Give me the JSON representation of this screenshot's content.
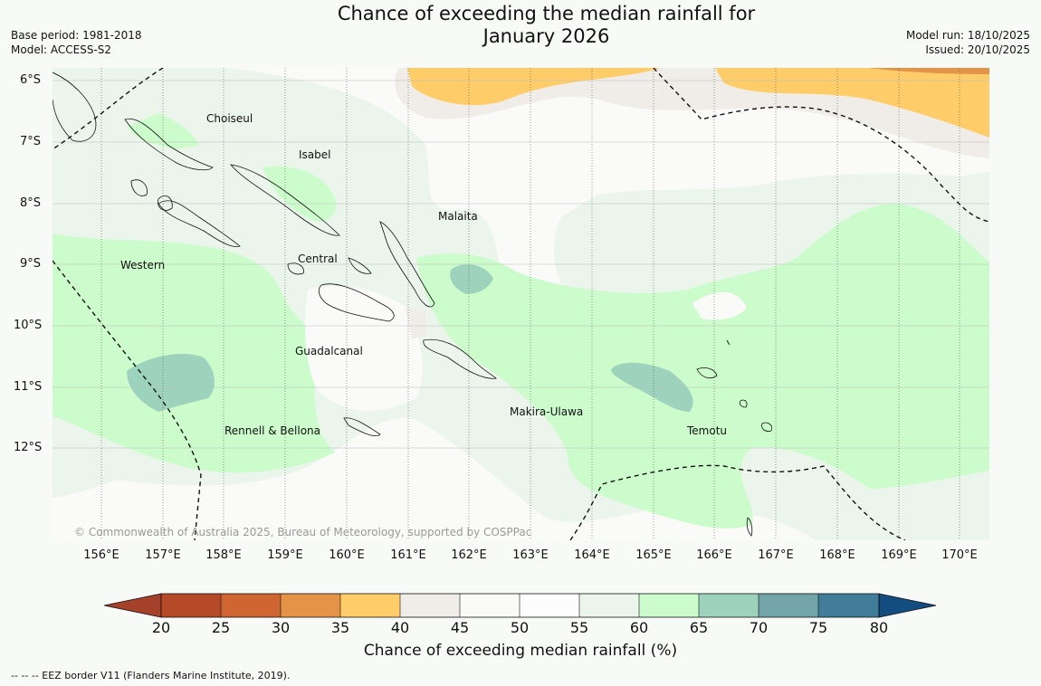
{
  "title_line1": "Chance of exceeding the median rainfall for",
  "title_line2": "January 2026",
  "base_period": "Base period: 1981-2018",
  "model": "Model: ACCESS-S2",
  "model_run": "Model run: 18/10/2025",
  "issued": "Issued: 20/10/2025",
  "latitude_labels": [
    "6°S",
    "7°S",
    "8°S",
    "9°S",
    "10°S",
    "11°S",
    "12°S"
  ],
  "longitude_labels": [
    "156°E",
    "157°E",
    "158°E",
    "159°E",
    "160°E",
    "161°E",
    "162°E",
    "163°E",
    "164°E",
    "165°E",
    "166°E",
    "167°E",
    "168°E",
    "169°E",
    "170°E"
  ],
  "provinces": [
    "Choiseul",
    "Isabel",
    "Malaita",
    "Western",
    "Central",
    "Guadalcanal",
    "Makira-Ulawa",
    "Temotu",
    "Rennell & Bellona"
  ],
  "copyright": "© Commonwealth of Australia 2025, Bureau of Meteorology, supported by COSPPac",
  "colorbar": {
    "ticks": [
      "20",
      "25",
      "30",
      "35",
      "40",
      "45",
      "50",
      "55",
      "60",
      "65",
      "70",
      "75",
      "80"
    ],
    "colors": [
      "#a5402a",
      "#b54a28",
      "#cf6531",
      "#e39447",
      "#fecd69",
      "#f0ede8",
      "#fafbf9",
      "#fbfcfb",
      "#ebf5eb",
      "#ccfccc",
      "#9dd3bc",
      "#72a5a7",
      "#417c99",
      "#134c7f"
    ],
    "title": "Chance of exceeding median rainfall (%)"
  },
  "footnote": "--  --  -- EEZ border V11 (Flanders Marine Institute, 2019)."
}
